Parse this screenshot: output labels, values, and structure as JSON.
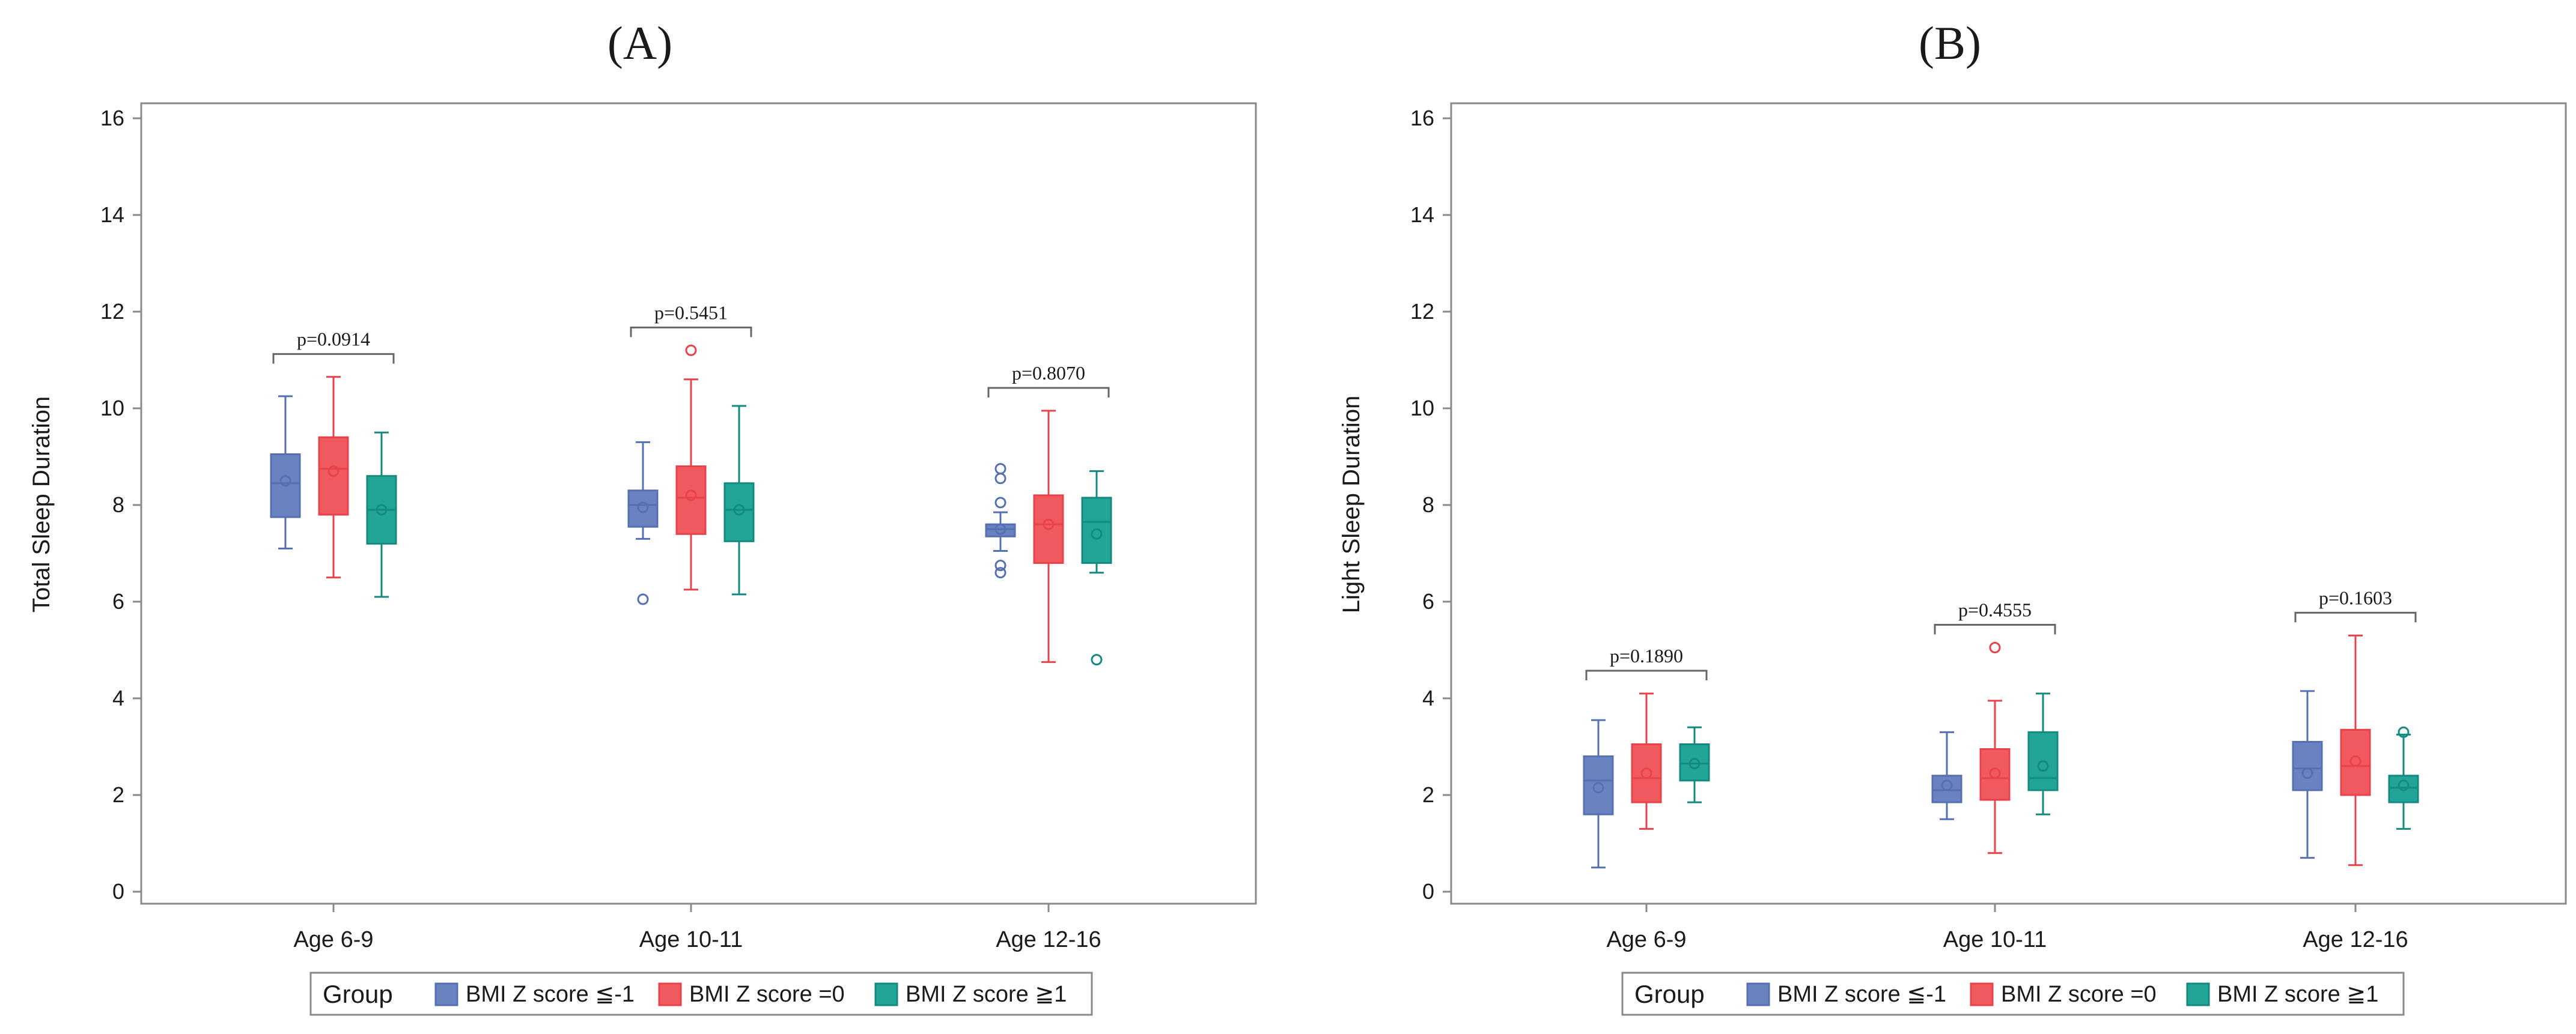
{
  "colors": {
    "bmi_neg": "#5470b3",
    "bmi_neg_fill": "#6a82c0",
    "bmi_zero": "#e8424a",
    "bmi_zero_fill": "#f05a5f",
    "bmi_pos": "#138a80",
    "bmi_pos_fill": "#23a596",
    "frame": "#8a8a8a",
    "bracket": "#666666"
  },
  "legend": {
    "title": "Group",
    "items": [
      {
        "label": "BMI Z score ≦-1",
        "color_key": "bmi_neg"
      },
      {
        "label": "BMI Z score =0",
        "color_key": "bmi_zero"
      },
      {
        "label": "BMI Z score ≧1",
        "color_key": "bmi_pos"
      }
    ]
  },
  "chart_data": [
    {
      "type": "box",
      "panel_label": "A",
      "ylabel": "Total Sleep Duration",
      "ylim": [
        0,
        16
      ],
      "yticks": [
        0,
        2,
        4,
        6,
        8,
        10,
        12,
        14,
        16
      ],
      "grid": false,
      "legend_position": "bottom",
      "categories": [
        "Age 6-9",
        "Age 10-11",
        "Age 12-16"
      ],
      "pvalues": [
        "p=0.0914",
        "p=0.5451",
        "p=0.8070"
      ],
      "series": [
        {
          "name": "BMI Z score ≦-1",
          "boxes": [
            {
              "min": 7.1,
              "q1": 7.75,
              "median": 8.45,
              "q3": 9.05,
              "max": 10.25,
              "mean": 8.5,
              "outliers": []
            },
            {
              "min": 7.3,
              "q1": 7.55,
              "median": 8.0,
              "q3": 8.3,
              "max": 9.3,
              "mean": 7.95,
              "outliers": [
                6.05
              ]
            },
            {
              "min": 7.05,
              "q1": 7.35,
              "median": 7.5,
              "q3": 7.6,
              "max": 7.85,
              "mean": 7.5,
              "outliers": [
                6.6,
                6.75,
                8.05,
                8.55,
                8.75
              ]
            }
          ]
        },
        {
          "name": "BMI Z score =0",
          "boxes": [
            {
              "min": 6.5,
              "q1": 7.8,
              "median": 8.75,
              "q3": 9.4,
              "max": 10.65,
              "mean": 8.7,
              "outliers": []
            },
            {
              "min": 6.25,
              "q1": 7.4,
              "median": 8.15,
              "q3": 8.8,
              "max": 10.6,
              "mean": 8.2,
              "outliers": [
                11.2
              ]
            },
            {
              "min": 4.75,
              "q1": 6.8,
              "median": 7.6,
              "q3": 8.2,
              "max": 9.95,
              "mean": 7.6,
              "outliers": []
            }
          ]
        },
        {
          "name": "BMI Z score ≧1",
          "boxes": [
            {
              "min": 6.1,
              "q1": 7.2,
              "median": 7.9,
              "q3": 8.6,
              "max": 9.5,
              "mean": 7.9,
              "outliers": []
            },
            {
              "min": 6.15,
              "q1": 7.25,
              "median": 7.9,
              "q3": 8.45,
              "max": 10.05,
              "mean": 7.9,
              "outliers": []
            },
            {
              "min": 6.6,
              "q1": 6.8,
              "median": 7.65,
              "q3": 8.15,
              "max": 8.7,
              "mean": 7.4,
              "outliers": [
                4.8
              ]
            }
          ]
        }
      ]
    },
    {
      "type": "box",
      "panel_label": "B",
      "ylabel": "Light Sleep Duration",
      "ylim": [
        0,
        16
      ],
      "yticks": [
        0,
        2,
        4,
        6,
        8,
        10,
        12,
        14,
        16
      ],
      "grid": false,
      "legend_position": "bottom",
      "categories": [
        "Age 6-9",
        "Age 10-11",
        "Age 12-16"
      ],
      "pvalues": [
        "p=0.1890",
        "p=0.4555",
        "p=0.1603"
      ],
      "series": [
        {
          "name": "BMI Z score ≦-1",
          "boxes": [
            {
              "min": 0.5,
              "q1": 1.6,
              "median": 2.3,
              "q3": 2.8,
              "max": 3.55,
              "mean": 2.15,
              "outliers": []
            },
            {
              "min": 1.5,
              "q1": 1.85,
              "median": 2.1,
              "q3": 2.4,
              "max": 3.3,
              "mean": 2.2,
              "outliers": []
            },
            {
              "min": 0.7,
              "q1": 2.1,
              "median": 2.55,
              "q3": 3.1,
              "max": 4.15,
              "mean": 2.45,
              "outliers": []
            }
          ]
        },
        {
          "name": "BMI Z score =0",
          "boxes": [
            {
              "min": 1.3,
              "q1": 1.85,
              "median": 2.35,
              "q3": 3.05,
              "max": 4.1,
              "mean": 2.45,
              "outliers": []
            },
            {
              "min": 0.8,
              "q1": 1.9,
              "median": 2.35,
              "q3": 2.95,
              "max": 3.95,
              "mean": 2.45,
              "outliers": [
                5.05
              ]
            },
            {
              "min": 0.55,
              "q1": 2.0,
              "median": 2.6,
              "q3": 3.35,
              "max": 5.3,
              "mean": 2.7,
              "outliers": []
            }
          ]
        },
        {
          "name": "BMI Z score ≧1",
          "boxes": [
            {
              "min": 1.85,
              "q1": 2.3,
              "median": 2.65,
              "q3": 3.05,
              "max": 3.4,
              "mean": 2.65,
              "outliers": []
            },
            {
              "min": 1.6,
              "q1": 2.1,
              "median": 2.35,
              "q3": 3.3,
              "max": 4.1,
              "mean": 2.6,
              "outliers": []
            },
            {
              "min": 1.3,
              "q1": 1.85,
              "median": 2.15,
              "q3": 2.4,
              "max": 3.25,
              "mean": 2.2,
              "outliers": [
                3.3
              ]
            }
          ]
        }
      ]
    }
  ]
}
